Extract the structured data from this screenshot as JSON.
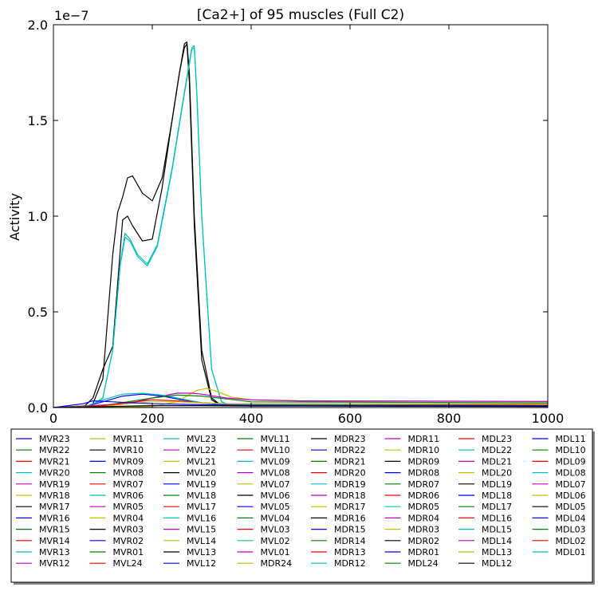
{
  "chart_data": {
    "type": "line",
    "title": "[Ca2+] of 95 muscles (Full C2)",
    "xlabel": "",
    "ylabel": "Activity",
    "multiplier": "1e−7",
    "xlim": [
      0,
      1000
    ],
    "ylim": [
      0,
      2.0
    ],
    "xticks": [
      "0",
      "200",
      "400",
      "600",
      "800",
      "1000"
    ],
    "yticks": [
      "0.0",
      "0.5",
      "1.0",
      "1.5",
      "2.0"
    ],
    "grid": false,
    "legend_position": "below the plot, 8 columns",
    "palette": [
      "#0000ff",
      "#008000",
      "#ff0000",
      "#00bfbf",
      "#bf00bf",
      "#bfbf00",
      "#000000"
    ],
    "legend": [
      "MVR23",
      "MVR22",
      "MVR21",
      "MVR20",
      "MVR19",
      "MVR18",
      "MVR17",
      "MVR16",
      "MVR15",
      "MVR14",
      "MVR13",
      "MVR12",
      "MVR11",
      "MVR10",
      "MVR09",
      "MVR08",
      "MVR07",
      "MVR06",
      "MVR05",
      "MVR04",
      "MVR03",
      "MVR02",
      "MVR01",
      "MVL24",
      "MVL23",
      "MVL22",
      "MVL21",
      "MVL20",
      "MVL19",
      "MVL18",
      "MVL17",
      "MVL16",
      "MVL15",
      "MVL14",
      "MVL13",
      "MVL12",
      "MVL11",
      "MVL10",
      "MVL09",
      "MVL08",
      "MVL07",
      "MVL06",
      "MVL05",
      "MVL04",
      "MVL03",
      "MVL02",
      "MVL01",
      "MDR24",
      "MDR23",
      "MDR22",
      "MDR21",
      "MDR20",
      "MDR19",
      "MDR18",
      "MDR17",
      "MDR16",
      "MDR15",
      "MDR14",
      "MDR13",
      "MDR12",
      "MDR11",
      "MDR10",
      "MDR09",
      "MDR08",
      "MDR07",
      "MDR06",
      "MDR05",
      "MDR04",
      "MDR03",
      "MDR02",
      "MDR01",
      "MDL24",
      "MDL23",
      "MDL22",
      "MDL21",
      "MDL20",
      "MDL19",
      "MDL18",
      "MDL17",
      "MDL16",
      "MDL15",
      "MDL14",
      "MDL13",
      "MDL12",
      "MDL11",
      "MDL10",
      "MDL09",
      "MDL08",
      "MDL07",
      "MDL06",
      "MDL05",
      "MDL04",
      "MDL03",
      "MDL02",
      "MDL01"
    ],
    "series": [
      {
        "color": "#000000",
        "x": [
          0,
          60,
          80,
          100,
          120,
          130,
          140,
          150,
          160,
          180,
          200,
          220,
          240,
          255,
          265,
          270,
          275,
          285,
          300,
          320,
          340,
          1000
        ],
        "y": [
          0,
          0,
          0.02,
          0.15,
          0.8,
          1.02,
          1.1,
          1.2,
          1.21,
          1.12,
          1.08,
          1.2,
          1.5,
          1.75,
          1.9,
          1.91,
          1.75,
          1.0,
          0.3,
          0.05,
          0.01,
          0.01
        ]
      },
      {
        "color": "#000000",
        "x": [
          0,
          60,
          80,
          100,
          120,
          130,
          140,
          150,
          160,
          180,
          200,
          220,
          240,
          255,
          265,
          270,
          275,
          285,
          300,
          320,
          340,
          1000
        ],
        "y": [
          0,
          0,
          0.05,
          0.2,
          0.32,
          0.65,
          0.98,
          1.0,
          0.95,
          0.87,
          0.88,
          1.15,
          1.5,
          1.75,
          1.88,
          1.9,
          1.7,
          0.95,
          0.25,
          0.04,
          0.01,
          0.01
        ]
      },
      {
        "color": "#00bfbf",
        "x": [
          0,
          70,
          100,
          120,
          135,
          145,
          155,
          170,
          190,
          210,
          240,
          265,
          280,
          285,
          290,
          300,
          320,
          340,
          360,
          1000
        ],
        "y": [
          0,
          0,
          0.05,
          0.3,
          0.75,
          0.91,
          0.88,
          0.8,
          0.75,
          0.85,
          1.25,
          1.65,
          1.88,
          1.89,
          1.65,
          1.0,
          0.2,
          0.03,
          0.01,
          0.01
        ]
      },
      {
        "color": "#00bfbf",
        "x": [
          0,
          70,
          100,
          120,
          135,
          145,
          155,
          170,
          190,
          210,
          240,
          265,
          280,
          285,
          290,
          300,
          320,
          340,
          360,
          1000
        ],
        "y": [
          0,
          0,
          0.05,
          0.3,
          0.74,
          0.89,
          0.87,
          0.79,
          0.74,
          0.84,
          1.24,
          1.64,
          1.87,
          1.88,
          1.64,
          1.0,
          0.2,
          0.03,
          0.01,
          0.01
        ]
      },
      {
        "color": "#bfbf00",
        "x": [
          0,
          200,
          250,
          290,
          310,
          330,
          360,
          400,
          500,
          1000
        ],
        "y": [
          0,
          0.005,
          0.03,
          0.09,
          0.1,
          0.085,
          0.055,
          0.04,
          0.035,
          0.032
        ]
      },
      {
        "color": "#bf00bf",
        "x": [
          0,
          150,
          200,
          250,
          280,
          300,
          350,
          400,
          500,
          1000
        ],
        "y": [
          0,
          0.02,
          0.05,
          0.075,
          0.075,
          0.07,
          0.05,
          0.04,
          0.035,
          0.032
        ]
      },
      {
        "color": "#0000ff",
        "x": [
          0,
          70,
          100,
          140,
          180,
          220,
          260,
          300,
          350,
          1000
        ],
        "y": [
          0,
          0.01,
          0.03,
          0.06,
          0.07,
          0.06,
          0.04,
          0.025,
          0.015,
          0.01
        ]
      },
      {
        "color": "#00bfbf",
        "x": [
          0,
          70,
          100,
          140,
          180,
          220,
          260,
          300,
          350,
          1000
        ],
        "y": [
          0,
          0.01,
          0.04,
          0.07,
          0.075,
          0.065,
          0.045,
          0.025,
          0.015,
          0.012
        ]
      },
      {
        "color": "#008000",
        "x": [
          0,
          100,
          150,
          200,
          250,
          300,
          350,
          400,
          1000
        ],
        "y": [
          0,
          0.01,
          0.03,
          0.05,
          0.065,
          0.06,
          0.045,
          0.03,
          0.025
        ]
      },
      {
        "color": "#ff0000",
        "x": [
          0,
          100,
          150,
          200,
          250,
          300,
          350,
          1000
        ],
        "y": [
          0,
          0.01,
          0.025,
          0.04,
          0.035,
          0.025,
          0.02,
          0.018
        ]
      },
      {
        "color": "#bfbf00",
        "x": [
          0,
          100,
          150,
          200,
          250,
          300,
          350,
          1000
        ],
        "y": [
          0,
          0.005,
          0.02,
          0.03,
          0.03,
          0.025,
          0.02,
          0.015
        ]
      },
      {
        "color": "#0000ff",
        "x": [
          0,
          60,
          80,
          120,
          200,
          300,
          400,
          1000
        ],
        "y": [
          0,
          0.02,
          0.035,
          0.03,
          0.02,
          0.015,
          0.012,
          0.01
        ]
      },
      {
        "color": "#000000",
        "x": [
          0,
          100,
          200,
          300,
          400,
          1000
        ],
        "y": [
          0,
          0.005,
          0.01,
          0.01,
          0.008,
          0.006
        ]
      }
    ]
  }
}
